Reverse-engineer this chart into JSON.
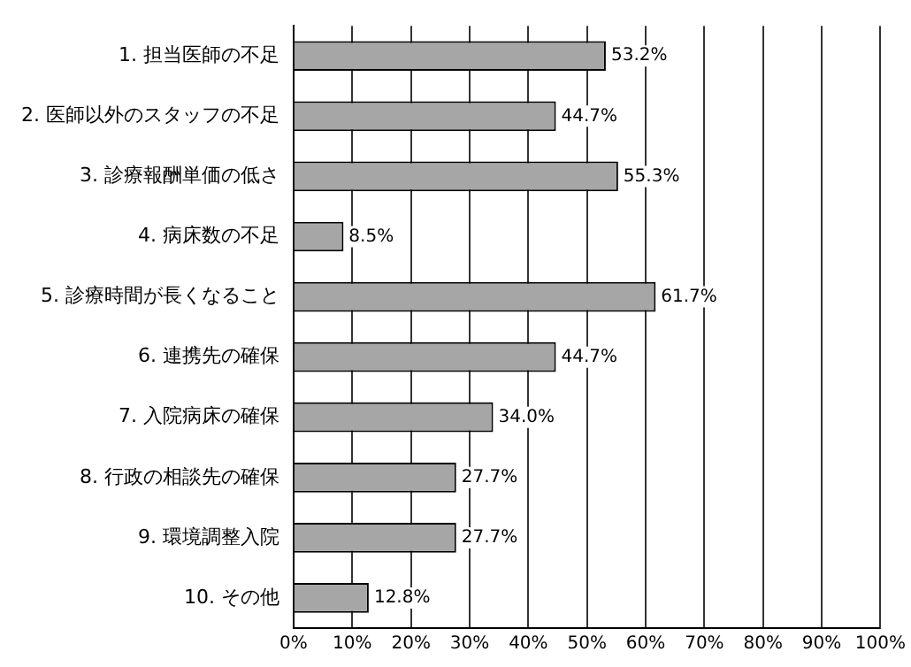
{
  "chart_data": {
    "type": "bar",
    "orientation": "horizontal",
    "categories": [
      "1. 担当医師の不足",
      "2. 医師以外のスタッフの不足",
      "3. 診療報酬単価の低さ",
      "4. 病床数の不足",
      "5. 診療時間が長くなること",
      "6. 連携先の確保",
      "7. 入院病床の確保",
      "8. 行政の相談先の確保",
      "9. 環境調整入院",
      "10. その他"
    ],
    "values": [
      53.2,
      44.7,
      55.3,
      8.5,
      61.7,
      44.7,
      34.0,
      27.7,
      27.7,
      12.8
    ],
    "value_labels": [
      "53.2%",
      "44.7%",
      "55.3%",
      "8.5%",
      "61.7%",
      "44.7%",
      "34.0%",
      "27.7%",
      "27.7%",
      "12.8%"
    ],
    "color": "#a6a6a6",
    "xlim": [
      0,
      100
    ],
    "xticks": [
      {
        "value": 0,
        "label": "0%"
      },
      {
        "value": 10,
        "label": "10%"
      },
      {
        "value": 20,
        "label": "20%"
      },
      {
        "value": 30,
        "label": "30%"
      },
      {
        "value": 40,
        "label": "40%"
      },
      {
        "value": 50,
        "label": "50%"
      },
      {
        "value": 60,
        "label": "60%"
      },
      {
        "value": 70,
        "label": "70%"
      },
      {
        "value": 80,
        "label": "80%"
      },
      {
        "value": 90,
        "label": "90%"
      },
      {
        "value": 100,
        "label": "100%"
      }
    ],
    "grid": "x",
    "legend": false
  }
}
